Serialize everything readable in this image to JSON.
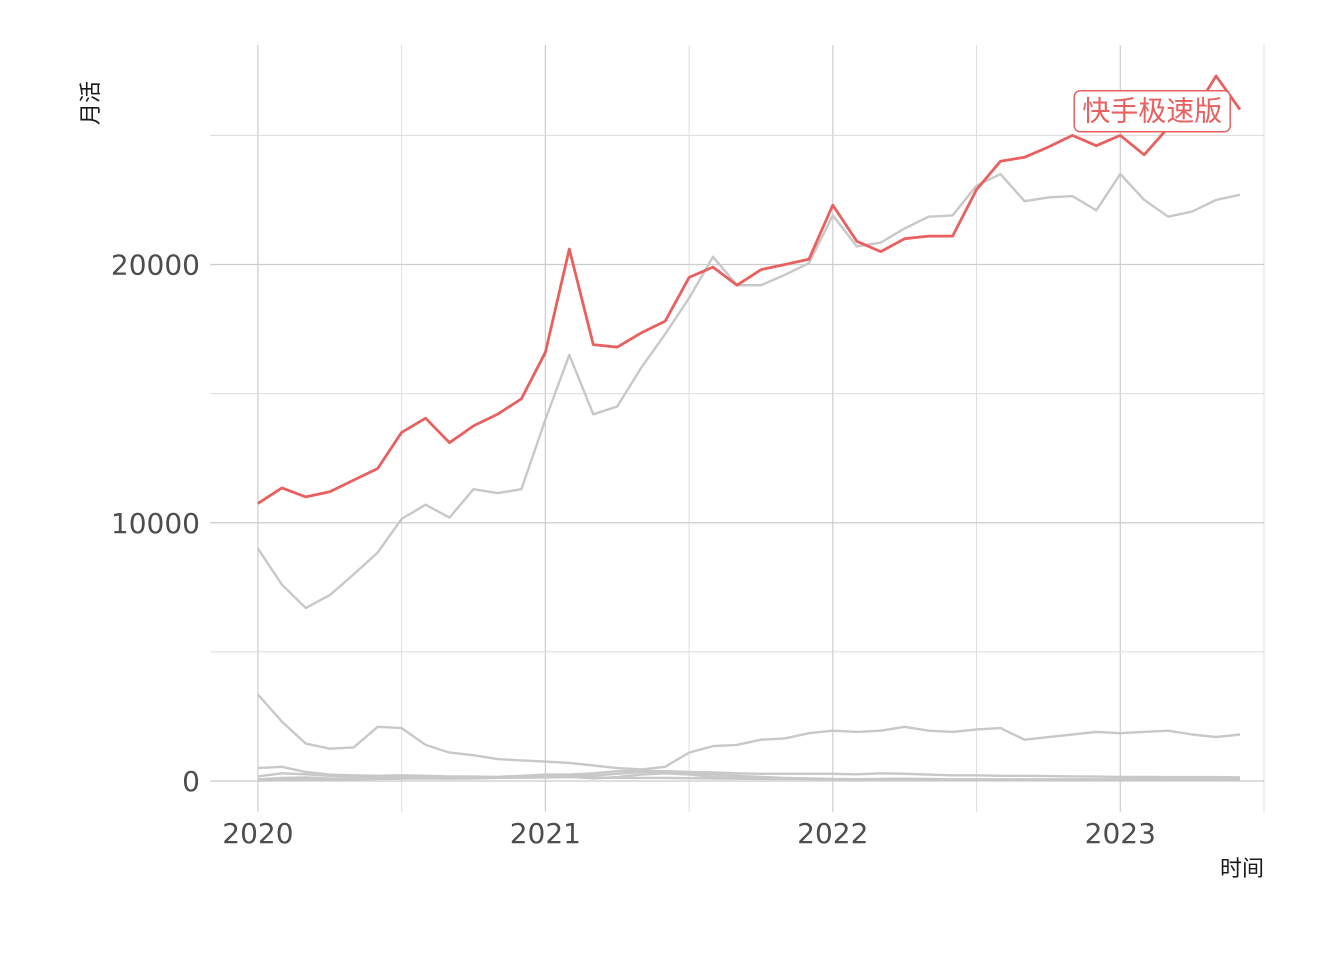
{
  "chart_data": {
    "type": "line",
    "xlabel": "时间",
    "ylabel": "月活",
    "x_ticks": [
      "2020",
      "2021",
      "2022",
      "2023"
    ],
    "y_ticks": [
      0,
      10000,
      20000
    ],
    "xlim": [
      "2019-11",
      "2023-07"
    ],
    "ylim": [
      -1200,
      28500
    ],
    "grid": true,
    "legend": "none",
    "highlight_color": "#e8605f",
    "other_color": "#c8c8c8",
    "start_month": "2020-01",
    "series": [
      {
        "name": "快手极速版",
        "highlight": true,
        "values": [
          10750,
          11350,
          11000,
          11200,
          11650,
          12100,
          13500,
          14050,
          13100,
          13750,
          14200,
          14800,
          16600,
          20600,
          16900,
          16800,
          17350,
          17800,
          19500,
          19900,
          19200,
          19800,
          20000,
          20200,
          22300,
          20900,
          20500,
          21000,
          21100,
          21100,
          22900,
          24000,
          24150,
          24550,
          25000,
          24600,
          25000,
          24250,
          25300,
          25800,
          27300,
          26000
        ]
      },
      {
        "highlight": false,
        "values": [
          9000,
          7600,
          6700,
          7200,
          8000,
          8850,
          10150,
          10700,
          10200,
          11300,
          11150,
          11300,
          14000,
          16500,
          14200,
          14500,
          16000,
          17300,
          18700,
          20300,
          19200,
          19200,
          19600,
          20050,
          21900,
          20700,
          20850,
          21400,
          21850,
          21900,
          23050,
          23500,
          22450,
          22600,
          22650,
          22100,
          23500,
          22500,
          21850,
          22050,
          22500,
          22700
        ]
      },
      {
        "highlight": false,
        "values": [
          3350,
          2300,
          1450,
          1250,
          1300,
          2100,
          2050,
          1400,
          1100,
          1000,
          850,
          800,
          750,
          700,
          600,
          500,
          450,
          550,
          1100,
          1350,
          1400,
          1600,
          1650,
          1850,
          1950,
          1900,
          1950,
          2100,
          1950,
          1900,
          2000,
          2050,
          1600,
          1700,
          1800,
          1900,
          1850,
          1900,
          1950,
          1800,
          1700,
          1800
        ]
      },
      {
        "highlight": false,
        "values": [
          500,
          550,
          350,
          250,
          220,
          200,
          220,
          200,
          180,
          170,
          160,
          200,
          250,
          250,
          300,
          380,
          400,
          380,
          350,
          330,
          300,
          280,
          280,
          280,
          280,
          260,
          300,
          280,
          250,
          220,
          220,
          200,
          200,
          190,
          180,
          170,
          160,
          160,
          150,
          150,
          150,
          140
        ]
      },
      {
        "highlight": false,
        "values": [
          180,
          300,
          260,
          200,
          180,
          170,
          160,
          150,
          150,
          150,
          150,
          160,
          180,
          170,
          100,
          150,
          250,
          300,
          250,
          150,
          120,
          100,
          90,
          80,
          70,
          60,
          70,
          80,
          60,
          50,
          50,
          50,
          60,
          60,
          60,
          60,
          60,
          70,
          60,
          60,
          60,
          60
        ]
      },
      {
        "highlight": false,
        "values": [
          60,
          120,
          140,
          100,
          90,
          100,
          120,
          100,
          90,
          100,
          130,
          160,
          200,
          200,
          210,
          280,
          350,
          350,
          300,
          250,
          200,
          160,
          120,
          100,
          80,
          70,
          80,
          90,
          80,
          60,
          60,
          60,
          50,
          50,
          40,
          40,
          40,
          30,
          30,
          30,
          30,
          30
        ]
      },
      {
        "highlight": false,
        "values": [
          20,
          40,
          60,
          50,
          60,
          80,
          90,
          100,
          110,
          110,
          120,
          130,
          140,
          150,
          140,
          120,
          120,
          120,
          110,
          100,
          90,
          80,
          80,
          80,
          70,
          70,
          70,
          60,
          60,
          60,
          60,
          60,
          60,
          60,
          60,
          60,
          60,
          60,
          60,
          60,
          60,
          60
        ]
      }
    ],
    "annotations": [
      {
        "text": "快手极速版",
        "series": "快手极速版"
      }
    ]
  }
}
